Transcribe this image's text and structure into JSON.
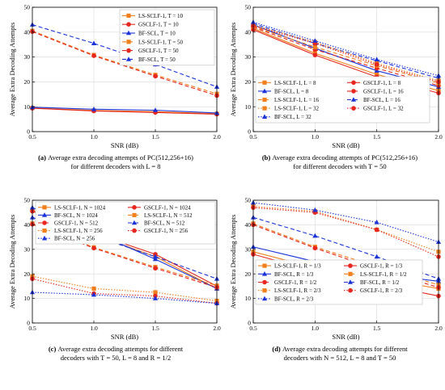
{
  "chart_data": [
    {
      "type": "line",
      "panel": "a",
      "caption_label": "(a)",
      "caption_lines": [
        "Average extra decoding attempts of PC(512,256+16)",
        "for different decoders with L = 8"
      ],
      "xlabel": "SNR (dB)",
      "ylabel": "Average Extra Decoding Attempts",
      "xlim": [
        0.5,
        2.0
      ],
      "ylim": [
        0,
        50
      ],
      "xticks": [
        "0.5",
        "1.0",
        "1.5",
        "2.0"
      ],
      "yticks": [
        "0",
        "10",
        "20",
        "30",
        "40",
        "50"
      ],
      "x": [
        0.5,
        1.0,
        1.5,
        2.0
      ],
      "legend_position": "top-right",
      "series": [
        {
          "name": "LS-SCLF-1, T = 10",
          "color": "#f07f1c",
          "marker": "square",
          "dash": "solid",
          "values": [
            9.5,
            8.5,
            8.0,
            7.2
          ]
        },
        {
          "name": "GSCLF-1, T = 10",
          "color": "#e6261f",
          "marker": "circle",
          "dash": "solid",
          "values": [
            9.4,
            8.3,
            7.7,
            7.0
          ]
        },
        {
          "name": "BF-SCL, T = 10",
          "color": "#1a33d9",
          "marker": "triangle",
          "dash": "solid",
          "values": [
            9.8,
            9.0,
            8.6,
            7.5
          ]
        },
        {
          "name": "LS-SCLF-1, T = 50",
          "color": "#f07f1c",
          "marker": "square",
          "dash": "dashed",
          "values": [
            40.5,
            30.8,
            22.8,
            15.2
          ]
        },
        {
          "name": "GSCLF-1, T = 50",
          "color": "#e6261f",
          "marker": "circle",
          "dash": "dashed",
          "values": [
            40.2,
            30.5,
            22.3,
            14.5
          ]
        },
        {
          "name": "BF-SCL, T = 50",
          "color": "#1a33d9",
          "marker": "triangle",
          "dash": "dashed",
          "values": [
            43.0,
            35.5,
            27.0,
            18.0
          ]
        }
      ]
    },
    {
      "type": "line",
      "panel": "b",
      "caption_label": "(b)",
      "caption_lines": [
        "Average extra decoding attempts of PC(512,256+16)",
        "for different decoders with T = 50"
      ],
      "xlabel": "SNR (dB)",
      "ylabel": "Average Extra Decoding Attempts",
      "xlim": [
        0.5,
        2.0
      ],
      "ylim": [
        0,
        50
      ],
      "xticks": [
        "0.5",
        "1.0",
        "1.5",
        "2.0"
      ],
      "yticks": [
        "0",
        "10",
        "20",
        "30",
        "40",
        "50"
      ],
      "x": [
        0.5,
        1.0,
        1.5,
        2.0
      ],
      "legend_position": "bottom-left",
      "series": [
        {
          "name": "LS-SCLF-1, L = 8",
          "color": "#f07f1c",
          "marker": "square",
          "dash": "solid",
          "values": [
            41.5,
            31.5,
            23.0,
            16.5
          ]
        },
        {
          "name": "GSCLF-1, L = 8",
          "color": "#e6261f",
          "marker": "circle",
          "dash": "solid",
          "values": [
            41.0,
            30.8,
            22.0,
            15.5
          ]
        },
        {
          "name": "BF-SCL, L = 8",
          "color": "#1a33d9",
          "marker": "triangle",
          "dash": "solid",
          "values": [
            43.0,
            33.5,
            24.5,
            18.0
          ]
        },
        {
          "name": "GSCLF-1, L = 16",
          "color": "#e6261f",
          "marker": "circle",
          "dash": "dashed",
          "values": [
            42.0,
            33.0,
            25.5,
            18.5
          ]
        },
        {
          "name": "LS-SCLF-1, L = 16",
          "color": "#f07f1c",
          "marker": "square",
          "dash": "dashed",
          "values": [
            42.3,
            34.0,
            26.5,
            19.5
          ]
        },
        {
          "name": "BF-SCL, L = 16",
          "color": "#1a33d9",
          "marker": "triangle",
          "dash": "dashed",
          "values": [
            43.5,
            35.5,
            28.5,
            21.5
          ]
        },
        {
          "name": "LS-SCLF-1, L = 32",
          "color": "#f07f1c",
          "marker": "square",
          "dash": "dotted",
          "values": [
            42.8,
            36.0,
            27.5,
            20.5
          ]
        },
        {
          "name": "GSCLF-1, L = 32",
          "color": "#e6261f",
          "marker": "circle",
          "dash": "dotted",
          "values": [
            42.5,
            35.5,
            27.0,
            20.0
          ]
        },
        {
          "name": "BF-SCL, L = 32",
          "color": "#1a33d9",
          "marker": "triangle",
          "dash": "dotted",
          "values": [
            44.0,
            36.5,
            29.0,
            22.5
          ]
        }
      ]
    },
    {
      "type": "line",
      "panel": "c",
      "caption_label": "(c)",
      "caption_lines": [
        "Average extra decoding attempts for different",
        "decoders with T = 50, L = 8 and R = 1/2"
      ],
      "xlabel": "SNR (dB)",
      "ylabel": "Average Extra Decoding Attempts",
      "xlim": [
        0.5,
        2.0
      ],
      "ylim": [
        0,
        50
      ],
      "xticks": [
        "0.5",
        "1.0",
        "1.5",
        "2.0"
      ],
      "yticks": [
        "0",
        "10",
        "20",
        "30",
        "40",
        "50"
      ],
      "x": [
        0.5,
        1.0,
        1.5,
        2.0
      ],
      "legend_position": "top",
      "series": [
        {
          "name": "LS-SCLF-1, N = 1024",
          "color": "#f07f1c",
          "marker": "square",
          "dash": "solid",
          "values": [
            46.0,
            36.0,
            27.0,
            14.0
          ]
        },
        {
          "name": "GSCLF-1, N = 1024",
          "color": "#e6261f",
          "marker": "circle",
          "dash": "solid",
          "values": [
            45.5,
            36.5,
            28.0,
            15.0
          ]
        },
        {
          "name": "BF-SCL, N = 1024",
          "color": "#1a33d9",
          "marker": "triangle",
          "dash": "solid",
          "values": [
            47.0,
            37.0,
            26.0,
            14.0
          ]
        },
        {
          "name": "LS-SCLF-1, N = 512",
          "color": "#f07f1c",
          "marker": "square",
          "dash": "dashed",
          "values": [
            40.5,
            30.8,
            22.8,
            15.2
          ]
        },
        {
          "name": "GSCLF-1, N = 512",
          "color": "#e6261f",
          "marker": "circle",
          "dash": "dashed",
          "values": [
            40.2,
            30.5,
            22.3,
            14.5
          ]
        },
        {
          "name": "BF-SCL, N = 512",
          "color": "#1a33d9",
          "marker": "triangle",
          "dash": "dashed",
          "values": [
            43.0,
            35.5,
            27.0,
            18.0
          ]
        },
        {
          "name": "LS-SCLF-1, N = 256",
          "color": "#f07f1c",
          "marker": "square",
          "dash": "dotted",
          "values": [
            19.0,
            14.0,
            12.5,
            9.0
          ]
        },
        {
          "name": "GSCLF-1, N = 256",
          "color": "#e6261f",
          "marker": "circle",
          "dash": "dotted",
          "values": [
            18.0,
            12.0,
            11.0,
            8.0
          ]
        },
        {
          "name": "BF-SCL, N = 256",
          "color": "#1a33d9",
          "marker": "triangle",
          "dash": "dotted",
          "values": [
            12.5,
            11.5,
            10.0,
            8.0
          ]
        }
      ]
    },
    {
      "type": "line",
      "panel": "d",
      "caption_label": "(d)",
      "caption_lines": [
        "Average extra decoding attempts for different",
        "decoders with N = 512, L = 8 and T = 50"
      ],
      "xlabel": "SNR (dB)",
      "ylabel": "Average Extra Decoding Attempts",
      "xlim": [
        0.5,
        2.0
      ],
      "ylim": [
        0,
        50
      ],
      "xticks": [
        "0.5",
        "1.0",
        "1.5",
        "2.0"
      ],
      "yticks": [
        "0",
        "10",
        "20",
        "30",
        "40",
        "50"
      ],
      "x": [
        0.5,
        1.0,
        1.5,
        2.0
      ],
      "legend_position": "bottom-left",
      "series": [
        {
          "name": "LS-SCLF-1, R = 1/3",
          "color": "#f07f1c",
          "marker": "square",
          "dash": "solid",
          "values": [
            29.0,
            22.5,
            18.5,
            14.0
          ]
        },
        {
          "name": "GSCLF-1, R = 1/3",
          "color": "#e6261f",
          "marker": "circle",
          "dash": "solid",
          "values": [
            28.0,
            21.0,
            16.0,
            11.0
          ]
        },
        {
          "name": "BF-SCL, R = 1/3",
          "color": "#1a33d9",
          "marker": "triangle",
          "dash": "solid",
          "values": [
            31.0,
            25.0,
            20.0,
            17.0
          ]
        },
        {
          "name": "LS-SCLF-1, R = 1/2",
          "color": "#f07f1c",
          "marker": "square",
          "dash": "dashed",
          "values": [
            40.5,
            31.0,
            23.0,
            15.5
          ]
        },
        {
          "name": "GSCLF-1, R = 1/2",
          "color": "#e6261f",
          "marker": "circle",
          "dash": "dashed",
          "values": [
            40.0,
            30.5,
            22.0,
            14.5
          ]
        },
        {
          "name": "BF-SCL, R = 1/2",
          "color": "#1a33d9",
          "marker": "triangle",
          "dash": "dashed",
          "values": [
            43.0,
            35.5,
            27.0,
            18.0
          ]
        },
        {
          "name": "LS-SCLF-1, R = 2/3",
          "color": "#f07f1c",
          "marker": "square",
          "dash": "dotted",
          "values": [
            47.5,
            45.5,
            38.0,
            29.0
          ]
        },
        {
          "name": "GSCLF-1, R = 2/3",
          "color": "#e6261f",
          "marker": "circle",
          "dash": "dotted",
          "values": [
            47.0,
            45.0,
            38.0,
            27.0
          ]
        },
        {
          "name": "BF-SCL, R = 2/3",
          "color": "#1a33d9",
          "marker": "triangle",
          "dash": "dotted",
          "values": [
            49.0,
            46.0,
            41.0,
            33.0
          ]
        }
      ]
    }
  ]
}
